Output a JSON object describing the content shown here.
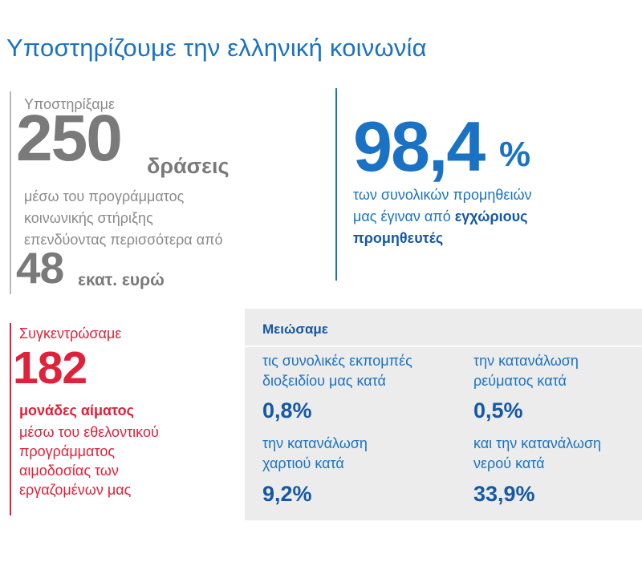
{
  "title": "Υποστηρίζουμε την ελληνική κοινωνία",
  "support": {
    "intro": "Υποστηρίξαμε",
    "number": "250",
    "unit": "δράσεις",
    "desc_lines": [
      "μέσω του προγράμματος",
      "κοινωνικής στήριξης",
      "επενδύοντας περισσότερα από"
    ],
    "amount": "48",
    "amount_unit": "εκατ. ευρώ",
    "color": "#7a7a7a"
  },
  "suppliers": {
    "number": "98,4",
    "percent_sign": "%",
    "desc_line1": "των συνολικών προμηθειών",
    "desc_line2_plain": "μας έγιναν από ",
    "desc_line2_bold": "εγχώριους",
    "desc_line3_bold": "προμηθευτές",
    "color": "#1a72c4"
  },
  "blood": {
    "intro": "Συγκεντρώσαμε",
    "number": "182",
    "unit": "μονάδες αίματος",
    "desc_lines": [
      "μέσω του εθελοντικού",
      "προγράμματος",
      "αιμοδοσίας των",
      "εργαζομένων μας"
    ],
    "color": "#e0213a"
  },
  "reductions": {
    "heading": "Μειώσαμε",
    "items": [
      {
        "label_lines": [
          "τις συνολικές εκπομπές",
          "διοξειδίου μας κατά"
        ],
        "value": "0,8%"
      },
      {
        "label_lines": [
          "την κατανάλωση",
          "ρεύματος κατά"
        ],
        "value": "0,5%"
      },
      {
        "label_lines": [
          "την κατανάλωση",
          "χαρτιού κατά"
        ],
        "value": "9,2%"
      },
      {
        "label_lines": [
          "και την κατανάλωση",
          "νερού κατά"
        ],
        "value": "33,9%"
      }
    ],
    "panel_color": "#ececec"
  }
}
